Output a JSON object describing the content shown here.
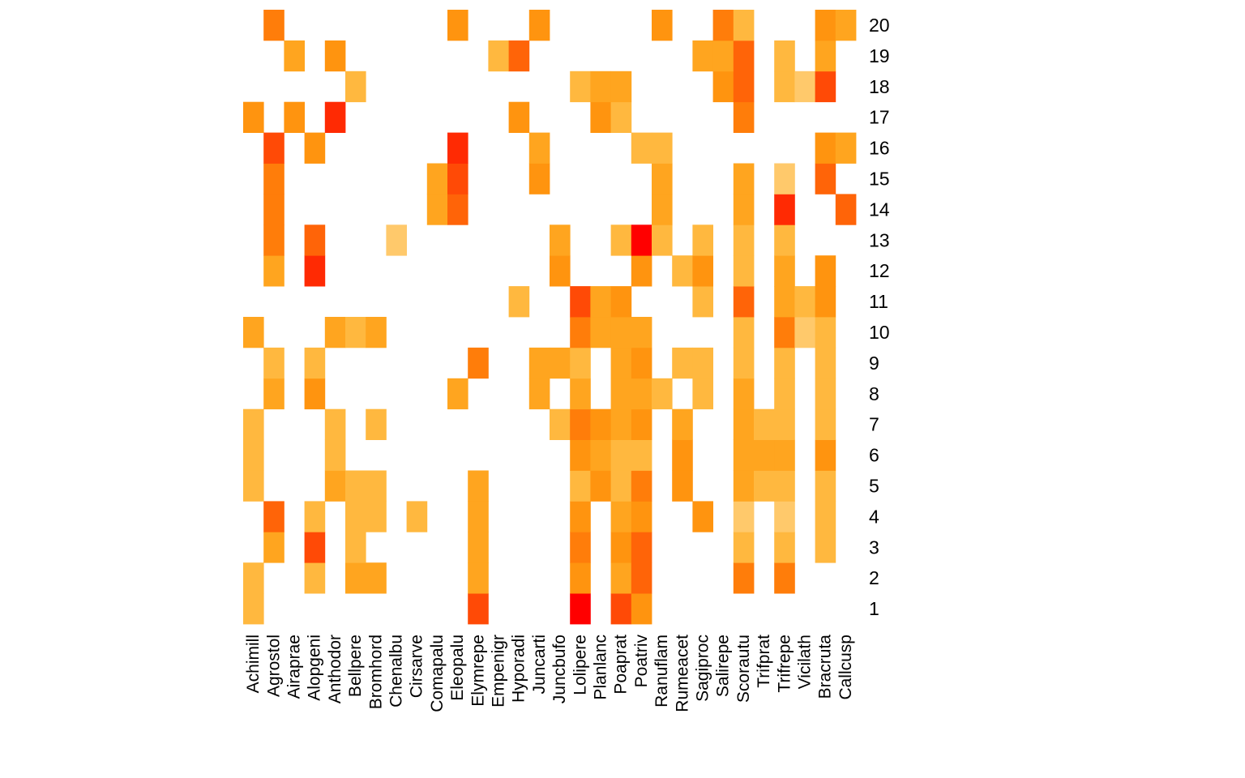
{
  "chart_data": {
    "type": "heatmap",
    "title": "",
    "xlabel": "",
    "ylabel": "",
    "x_categories": [
      "Achimill",
      "Agrostol",
      "Airaprae",
      "Alopgeni",
      "Anthodor",
      "Bellpere",
      "Bromhord",
      "Chenalbu",
      "Cirsarve",
      "Comapalu",
      "Eleopalu",
      "Elymrepe",
      "Empenigr",
      "Hyporadi",
      "Juncarti",
      "Juncbufo",
      "Lolipere",
      "Planlanc",
      "Poaprat",
      "Poatriv",
      "Ranuflam",
      "Rumeacet",
      "Sagiproc",
      "Salirepe",
      "Scorautu",
      "Trifprat",
      "Trifrepe",
      "Vicilath",
      "Bracruta",
      "Callcusp"
    ],
    "y_categories": [
      "1",
      "2",
      "3",
      "4",
      "5",
      "6",
      "7",
      "8",
      "9",
      "10",
      "11",
      "12",
      "13",
      "14",
      "15",
      "16",
      "17",
      "18",
      "19",
      "20"
    ],
    "value_range": [
      1,
      9
    ],
    "colormap": "heat (low = light yellow-orange, high = red); empty cell = absent",
    "rows": [
      {
        "y": "1",
        "values": [
          2,
          0,
          0,
          0,
          0,
          0,
          0,
          0,
          0,
          0,
          0,
          7,
          0,
          0,
          0,
          0,
          9,
          0,
          7,
          4,
          0,
          0,
          0,
          0,
          0,
          0,
          0,
          0,
          0,
          0
        ]
      },
      {
        "y": "2",
        "values": [
          2,
          0,
          0,
          2,
          0,
          3,
          3,
          0,
          0,
          0,
          0,
          3,
          0,
          0,
          0,
          0,
          4,
          0,
          3,
          6,
          0,
          0,
          0,
          0,
          5,
          0,
          5,
          0,
          0,
          0
        ]
      },
      {
        "y": "3",
        "values": [
          0,
          3,
          0,
          7,
          0,
          2,
          0,
          0,
          0,
          0,
          0,
          3,
          0,
          0,
          0,
          0,
          5,
          0,
          4,
          6,
          0,
          0,
          0,
          0,
          2,
          0,
          2,
          0,
          2,
          0
        ]
      },
      {
        "y": "4",
        "values": [
          0,
          6,
          0,
          2,
          0,
          2,
          2,
          0,
          2,
          0,
          0,
          3,
          0,
          0,
          0,
          0,
          4,
          0,
          3,
          4,
          0,
          0,
          4,
          0,
          1,
          0,
          1,
          0,
          2,
          0
        ]
      },
      {
        "y": "5",
        "values": [
          2,
          0,
          0,
          0,
          3,
          2,
          2,
          0,
          0,
          0,
          0,
          3,
          0,
          0,
          0,
          0,
          2,
          4,
          2,
          5,
          0,
          4,
          0,
          0,
          3,
          2,
          2,
          0,
          2,
          0
        ]
      },
      {
        "y": "6",
        "values": [
          2,
          0,
          0,
          0,
          2,
          0,
          0,
          0,
          0,
          0,
          0,
          0,
          0,
          0,
          0,
          0,
          4,
          3,
          2,
          2,
          0,
          4,
          0,
          0,
          3,
          3,
          3,
          0,
          4,
          0
        ]
      },
      {
        "y": "7",
        "values": [
          2,
          0,
          0,
          0,
          2,
          0,
          2,
          0,
          0,
          0,
          0,
          0,
          0,
          0,
          0,
          2,
          5,
          4,
          3,
          4,
          0,
          3,
          0,
          0,
          3,
          2,
          2,
          0,
          2,
          0
        ]
      },
      {
        "y": "8",
        "values": [
          0,
          3,
          0,
          4,
          0,
          0,
          0,
          0,
          0,
          0,
          3,
          0,
          0,
          0,
          3,
          0,
          3,
          0,
          3,
          3,
          2,
          0,
          2,
          0,
          3,
          0,
          2,
          0,
          2,
          0
        ]
      },
      {
        "y": "9",
        "values": [
          0,
          2,
          0,
          2,
          0,
          0,
          0,
          0,
          0,
          0,
          0,
          5,
          0,
          0,
          3,
          3,
          2,
          0,
          3,
          4,
          0,
          2,
          2,
          0,
          2,
          0,
          2,
          0,
          2,
          0
        ]
      },
      {
        "y": "10",
        "values": [
          3,
          0,
          0,
          0,
          3,
          2,
          3,
          0,
          0,
          0,
          0,
          0,
          0,
          0,
          0,
          0,
          5,
          3,
          3,
          3,
          0,
          0,
          0,
          0,
          2,
          0,
          5,
          1,
          2,
          0
        ]
      },
      {
        "y": "11",
        "values": [
          0,
          0,
          0,
          0,
          0,
          0,
          0,
          0,
          0,
          0,
          0,
          0,
          0,
          2,
          0,
          0,
          7,
          3,
          4,
          0,
          0,
          0,
          2,
          0,
          6,
          0,
          3,
          2,
          4,
          0
        ]
      },
      {
        "y": "12",
        "values": [
          0,
          3,
          0,
          8,
          0,
          0,
          0,
          0,
          0,
          0,
          0,
          0,
          0,
          0,
          0,
          4,
          0,
          0,
          0,
          4,
          0,
          2,
          4,
          0,
          2,
          0,
          3,
          0,
          4,
          0
        ]
      },
      {
        "y": "13",
        "values": [
          0,
          5,
          0,
          6,
          0,
          0,
          0,
          1,
          0,
          0,
          0,
          0,
          0,
          0,
          0,
          3,
          0,
          0,
          2,
          9,
          2,
          0,
          2,
          0,
          2,
          0,
          2,
          0,
          0,
          0
        ]
      },
      {
        "y": "14",
        "values": [
          0,
          5,
          0,
          0,
          0,
          0,
          0,
          0,
          0,
          3,
          6,
          0,
          0,
          0,
          0,
          0,
          0,
          0,
          0,
          0,
          3,
          0,
          0,
          0,
          3,
          0,
          8,
          0,
          0,
          6
        ]
      },
      {
        "y": "15",
        "values": [
          0,
          5,
          0,
          0,
          0,
          0,
          0,
          0,
          0,
          3,
          7,
          0,
          0,
          0,
          4,
          0,
          0,
          0,
          0,
          0,
          3,
          0,
          0,
          0,
          3,
          0,
          1,
          0,
          6,
          0
        ]
      },
      {
        "y": "16",
        "values": [
          0,
          7,
          0,
          4,
          0,
          0,
          0,
          0,
          0,
          0,
          8,
          0,
          0,
          0,
          3,
          0,
          0,
          0,
          0,
          2,
          2,
          0,
          0,
          0,
          0,
          0,
          0,
          0,
          4,
          3
        ]
      },
      {
        "y": "17",
        "values": [
          4,
          0,
          4,
          0,
          8,
          0,
          0,
          0,
          0,
          0,
          0,
          0,
          0,
          4,
          0,
          0,
          0,
          4,
          2,
          0,
          0,
          0,
          0,
          0,
          5,
          0,
          0,
          0,
          0,
          0
        ]
      },
      {
        "y": "18",
        "values": [
          0,
          0,
          0,
          0,
          0,
          2,
          0,
          0,
          0,
          0,
          0,
          0,
          0,
          0,
          0,
          0,
          2,
          3,
          3,
          0,
          0,
          0,
          0,
          4,
          6,
          0,
          2,
          1,
          7,
          0
        ]
      },
      {
        "y": "19",
        "values": [
          0,
          0,
          3,
          0,
          4,
          0,
          0,
          0,
          0,
          0,
          0,
          0,
          2,
          6,
          0,
          0,
          0,
          0,
          0,
          0,
          0,
          0,
          3,
          3,
          6,
          0,
          2,
          0,
          3,
          0
        ]
      },
      {
        "y": "20",
        "values": [
          0,
          5,
          0,
          0,
          0,
          0,
          0,
          0,
          0,
          0,
          4,
          0,
          0,
          0,
          4,
          0,
          0,
          0,
          0,
          0,
          4,
          0,
          0,
          5,
          2,
          0,
          0,
          0,
          4,
          3
        ]
      }
    ]
  }
}
